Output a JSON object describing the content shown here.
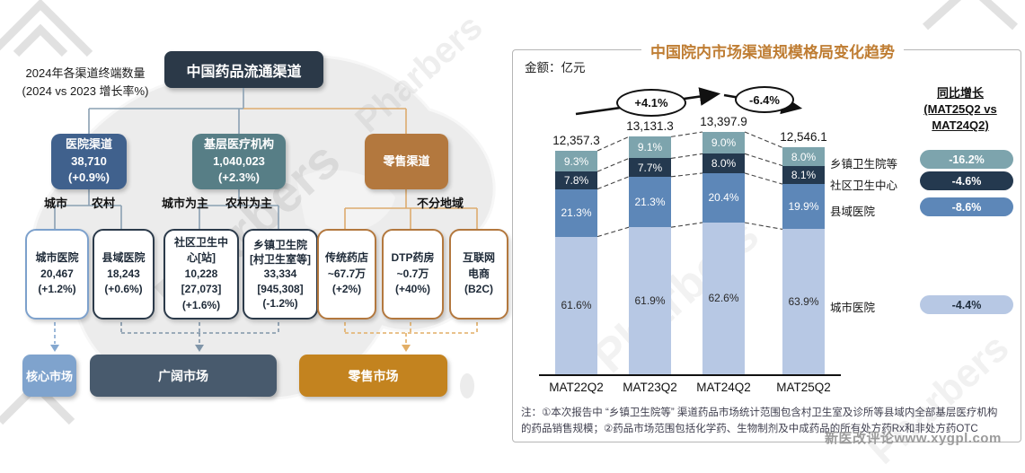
{
  "left": {
    "note_line1": "2024年各渠道终端数量",
    "note_line2": "(2024 vs 2023 增长率%)",
    "root_title": "中国药品流通渠道",
    "channels": [
      {
        "title": "医院渠道",
        "count": "38,710",
        "growth": "(+0.9%)"
      },
      {
        "title": "基层医疗机构",
        "count": "1,040,023",
        "growth": "(+2.3%)"
      },
      {
        "title": "零售渠道"
      }
    ],
    "region_labels": [
      "城市",
      "农村",
      "城市为主",
      "农村为主",
      "不分地域"
    ],
    "terminals": [
      {
        "lines": [
          "城市医院",
          "20,467",
          "(+1.2%)"
        ]
      },
      {
        "lines": [
          "县域医院",
          "18,243",
          "(+0.6%)"
        ]
      },
      {
        "lines": [
          "社区卫生中心[站]",
          "10,228",
          "[27,073]",
          "(+1.6%)"
        ]
      },
      {
        "lines": [
          "乡镇卫生院",
          "[村卫生室等]",
          "33,334",
          "[945,308]",
          "(-1.2%)"
        ]
      },
      {
        "lines": [
          "传统药店",
          "~67.7万",
          "(+2%)"
        ]
      },
      {
        "lines": [
          "DTP药房",
          "~0.7万",
          "(+40%)"
        ]
      },
      {
        "lines": [
          "互联网",
          "电商",
          "(B2C)"
        ]
      }
    ],
    "markets": [
      "核心市场",
      "广阔市场",
      "零售市场"
    ]
  },
  "right": {
    "title": "中国院内市场渠道规模格局变化趋势",
    "amount_label": "金额：亿元",
    "growth_annotations": [
      "+4.1%",
      "-6.4%"
    ],
    "yoy": {
      "header_line1": "同比增长",
      "header_line2": "(MAT25Q2 vs",
      "header_line3": "MAT24Q2)",
      "items": [
        {
          "label": "乡镇卫生院等",
          "value": "-16.2%"
        },
        {
          "label": "社区卫生中心",
          "value": "-4.6%"
        },
        {
          "label": "县域医院",
          "value": "-8.6%"
        },
        {
          "label": "城市医院",
          "value": "-4.4%"
        }
      ]
    },
    "footnote_line1": "注：①本次报告中 “乡镇卫生院等” 渠道药品市场统计范围包含村卫生室及诊所等县域内全部基层医疗机构",
    "footnote_line2": "的药品销售规模；②药品市场范围包括化学药、生物制剂及中成药品的所有处方药Rx和非处方药OTC"
  },
  "chart_data": {
    "type": "bar",
    "subtype": "stacked-percent",
    "title": "中国院内市场渠道规模格局变化趋势",
    "unit": "亿元",
    "categories": [
      "MAT22Q2",
      "MAT23Q2",
      "MAT24Q2",
      "MAT25Q2"
    ],
    "totals": [
      12357.3,
      13131.3,
      13397.9,
      12546.1
    ],
    "total_labels": [
      "12,357.3",
      "13,131.3",
      "13,397.9",
      "12,546.1"
    ],
    "series": [
      {
        "name": "城市医院",
        "color": "#b7c8e4",
        "text_color": "#2a2a2a",
        "pct": [
          61.6,
          61.9,
          62.6,
          63.9
        ]
      },
      {
        "name": "县域医院",
        "color": "#5d87b8",
        "text_color": "#ffffff",
        "pct": [
          21.3,
          21.3,
          20.4,
          19.9
        ]
      },
      {
        "name": "社区卫生中心",
        "color": "#24394f",
        "text_color": "#ffffff",
        "pct": [
          7.8,
          7.7,
          8.0,
          8.1
        ]
      },
      {
        "name": "乡镇卫生院等",
        "color": "#7da4ad",
        "text_color": "#ffffff",
        "pct": [
          9.3,
          9.1,
          9.0,
          8.0
        ]
      }
    ],
    "annotations": [
      "+4.1%",
      "-6.4%"
    ],
    "legend_position": "right",
    "grid": false
  },
  "colors": {
    "hospital_box": "#40618d",
    "primarycare_box": "#577e86",
    "retail_box": "#b3783e",
    "root_box": "#2b3948",
    "core_market": "#7fa3cd",
    "broad_market": "#485a6d",
    "retail_market": "#c3831f",
    "title_orange": "#bf7d33",
    "pill_colors": [
      "#7da4ad",
      "#24394f",
      "#5d87b8",
      "#b7c8e4"
    ]
  },
  "watermarks": {
    "brand": "Pharbers",
    "site": "新医改评论www.xygpl.com"
  }
}
